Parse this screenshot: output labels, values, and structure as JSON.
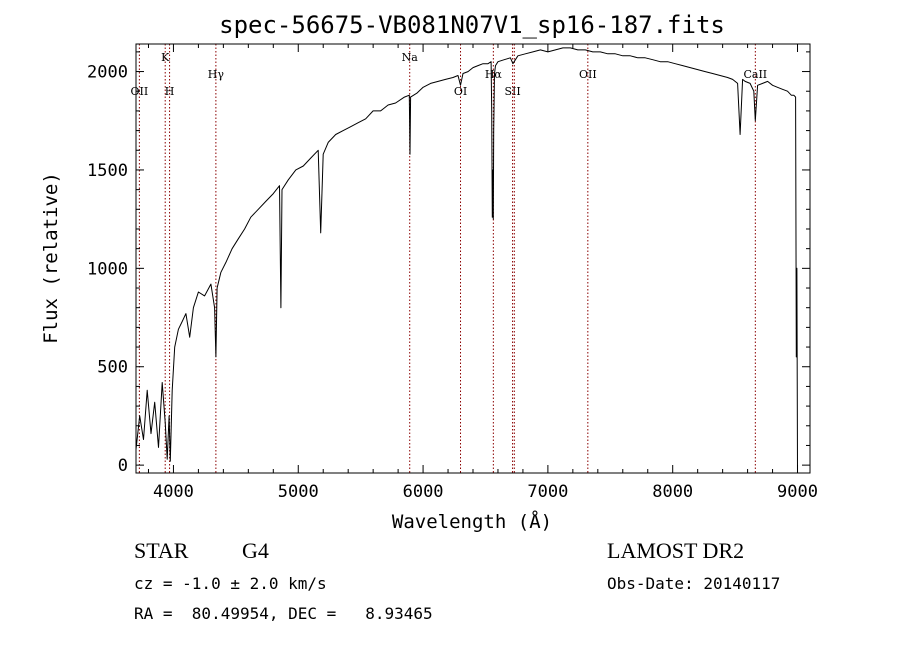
{
  "chart_data": {
    "type": "line",
    "title": "spec-56675-VB081N07V1_sp16-187.fits",
    "xlabel": "Wavelength (Å)",
    "ylabel": "Flux (relative)",
    "xlim": [
      3700,
      9100
    ],
    "ylim": [
      -40,
      2140
    ],
    "x_ticks": [
      4000,
      5000,
      6000,
      7000,
      8000,
      9000
    ],
    "y_ticks": [
      0,
      500,
      1000,
      1500,
      2000
    ],
    "line_color": "#000000",
    "marker_color": "#8b0000",
    "spectrum": {
      "x": [
        3700,
        3730,
        3760,
        3790,
        3820,
        3850,
        3880,
        3910,
        3935,
        3950,
        3965,
        3975,
        3990,
        4010,
        4040,
        4070,
        4100,
        4130,
        4160,
        4200,
        4250,
        4300,
        4330,
        4340,
        4350,
        4380,
        4420,
        4470,
        4520,
        4570,
        4620,
        4680,
        4740,
        4800,
        4850,
        4861,
        4870,
        4920,
        4980,
        5040,
        5100,
        5160,
        5180,
        5200,
        5240,
        5300,
        5360,
        5420,
        5480,
        5540,
        5600,
        5660,
        5720,
        5780,
        5850,
        5890,
        5895,
        5900,
        5950,
        6000,
        6060,
        6120,
        6180,
        6240,
        6280,
        6300,
        6320,
        6360,
        6400,
        6440,
        6480,
        6520,
        6545,
        6550,
        6555,
        6560,
        6563,
        6566,
        6572,
        6580,
        6600,
        6650,
        6700,
        6720,
        6760,
        6820,
        6880,
        6940,
        7000,
        7060,
        7120,
        7180,
        7240,
        7300,
        7360,
        7420,
        7480,
        7540,
        7600,
        7660,
        7720,
        7780,
        7840,
        7900,
        7960,
        8020,
        8080,
        8140,
        8200,
        8260,
        8320,
        8380,
        8440,
        8480,
        8520,
        8540,
        8560,
        8580,
        8620,
        8650,
        8662,
        8680,
        8720,
        8760,
        8800,
        8840,
        8880,
        8920,
        8950,
        8970,
        8985,
        8990,
        8995,
        9000
      ],
      "y": [
        80,
        250,
        130,
        380,
        160,
        320,
        90,
        420,
        210,
        30,
        250,
        20,
        380,
        600,
        690,
        730,
        770,
        650,
        800,
        880,
        860,
        920,
        800,
        550,
        900,
        980,
        1030,
        1100,
        1150,
        1200,
        1260,
        1300,
        1340,
        1380,
        1420,
        800,
        1400,
        1450,
        1500,
        1520,
        1560,
        1600,
        1180,
        1580,
        1640,
        1680,
        1700,
        1720,
        1740,
        1760,
        1800,
        1800,
        1830,
        1840,
        1870,
        1880,
        1580,
        1870,
        1890,
        1920,
        1940,
        1950,
        1960,
        1970,
        1980,
        1930,
        1990,
        2000,
        2020,
        2030,
        2040,
        2040,
        2050,
        1800,
        1260,
        1500,
        1250,
        1700,
        1990,
        2030,
        2050,
        2060,
        2070,
        2040,
        2080,
        2090,
        2100,
        2110,
        2100,
        2110,
        2120,
        2120,
        2110,
        2110,
        2100,
        2100,
        2090,
        2090,
        2080,
        2080,
        2070,
        2070,
        2060,
        2050,
        2050,
        2040,
        2030,
        2020,
        2010,
        2000,
        1990,
        1980,
        1970,
        1960,
        1940,
        1680,
        1960,
        1950,
        1940,
        1900,
        1750,
        1930,
        1940,
        1950,
        1930,
        1920,
        1910,
        1900,
        1880,
        1880,
        1870,
        550,
        1000,
        -40
      ]
    },
    "line_markers": [
      {
        "name": "OII",
        "x": 3727,
        "label_level": "low"
      },
      {
        "name": "K",
        "x": 3934,
        "label_level": "high"
      },
      {
        "name": "H",
        "x": 3969,
        "label_level": "low"
      },
      {
        "name": "Hγ",
        "x": 4340,
        "label_level": "mid"
      },
      {
        "name": "Na",
        "x": 5893,
        "label_level": "high"
      },
      {
        "name": "OI",
        "x": 6300,
        "label_level": "low"
      },
      {
        "name": "Hα",
        "x": 6563,
        "label_level": "mid"
      },
      {
        "name": "SII",
        "x": 6717,
        "label_level": "low"
      },
      {
        "name": "",
        "x": 6731,
        "label_level": "none"
      },
      {
        "name": "OII",
        "x": 7320,
        "label_level": "mid"
      },
      {
        "name": "CaII",
        "x": 8662,
        "label_level": "mid"
      }
    ]
  },
  "footer": {
    "object_class": "STAR",
    "subclass": "G4",
    "survey": "LAMOST DR2",
    "redshift_line": "cz = -1.0 ± 2.0 km/s",
    "obs_date_line": "Obs-Date: 20140117",
    "coords_line": "RA =  80.49954, DEC =   8.93465"
  }
}
